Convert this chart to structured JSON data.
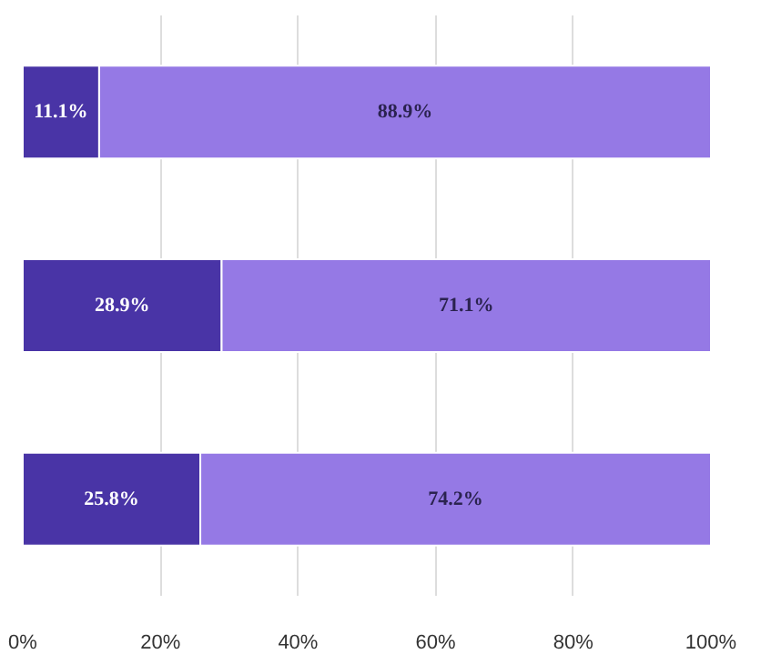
{
  "chart_data": {
    "type": "bar",
    "orientation": "horizontal",
    "stacked": true,
    "categories": [
      null,
      null,
      null
    ],
    "series": [
      {
        "color": "#4934a6",
        "values": [
          11.1,
          28.9,
          25.8
        ],
        "value_labels": [
          "11.1%",
          "28.9%",
          "25.8%"
        ]
      },
      {
        "color": "#9579e5",
        "values": [
          88.9,
          71.1,
          74.2
        ],
        "value_labels": [
          "88.9%",
          "71.1%",
          "74.2%"
        ]
      }
    ],
    "xlim": [
      0,
      100
    ],
    "xticks": [
      {
        "value": 0,
        "label": "0%"
      },
      {
        "value": 20,
        "label": "20%"
      },
      {
        "value": 40,
        "label": "40%"
      },
      {
        "value": 60,
        "label": "60%"
      },
      {
        "value": 80,
        "label": "80%"
      },
      {
        "value": 100,
        "label": "100%"
      }
    ],
    "grid": "x"
  }
}
